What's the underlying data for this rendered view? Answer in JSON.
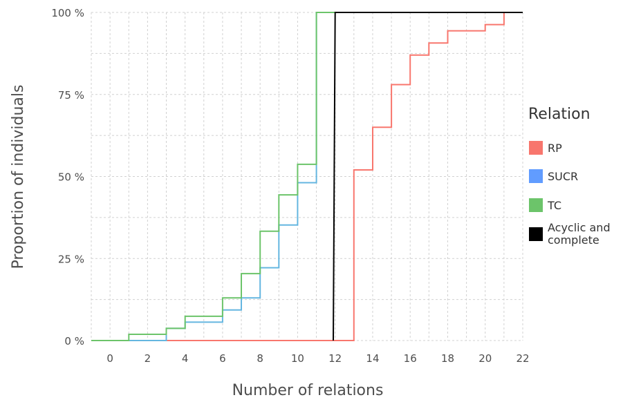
{
  "chart_data": {
    "type": "line",
    "step": true,
    "xlabel": "Number of relations",
    "ylabel": "Proportion of individuals",
    "xlim": [
      -1,
      22
    ],
    "ylim": [
      0,
      1
    ],
    "x_ticks": [
      0,
      2,
      4,
      6,
      8,
      10,
      12,
      14,
      16,
      18,
      20,
      22
    ],
    "y_ticks": [
      0,
      0.25,
      0.5,
      0.75,
      1
    ],
    "y_tick_labels": [
      "0 %",
      "25 %",
      "50 %",
      "75 %",
      "100 %"
    ],
    "grid": true,
    "legend": {
      "title": "Relation",
      "position": "right",
      "entries": [
        {
          "label": "RP",
          "color": "#F8766D"
        },
        {
          "label": "SUCR",
          "color": "#619CFF"
        },
        {
          "label": "TC",
          "color": "#6CC46A"
        },
        {
          "label": "Acyclic and complete",
          "label_lines": [
            "Acyclic and",
            "complete"
          ],
          "color": "#000000"
        }
      ]
    },
    "series": [
      {
        "name": "RP",
        "color": "#F8766D",
        "points": [
          [
            0,
            0
          ],
          [
            13,
            0
          ],
          [
            13,
            0.52
          ],
          [
            14,
            0.52
          ],
          [
            14,
            0.65
          ],
          [
            15,
            0.65
          ],
          [
            15,
            0.78
          ],
          [
            16,
            0.78
          ],
          [
            16,
            0.87
          ],
          [
            17,
            0.87
          ],
          [
            17,
            0.907
          ],
          [
            18,
            0.907
          ],
          [
            18,
            0.944
          ],
          [
            20,
            0.944
          ],
          [
            20,
            0.963
          ],
          [
            21,
            0.963
          ],
          [
            21,
            1
          ],
          [
            22,
            1
          ]
        ]
      },
      {
        "name": "SUCR",
        "color": "#64B6E0",
        "points": [
          [
            0,
            0
          ],
          [
            3,
            0
          ],
          [
            3,
            0.037
          ],
          [
            4,
            0.037
          ],
          [
            4,
            0.056
          ],
          [
            6,
            0.056
          ],
          [
            6,
            0.093
          ],
          [
            7,
            0.093
          ],
          [
            7,
            0.13
          ],
          [
            8,
            0.13
          ],
          [
            8,
            0.222
          ],
          [
            9,
            0.222
          ],
          [
            9,
            0.352
          ],
          [
            10,
            0.352
          ],
          [
            10,
            0.481
          ],
          [
            11,
            0.481
          ],
          [
            11,
            1
          ],
          [
            22,
            1
          ]
        ]
      },
      {
        "name": "TC",
        "color": "#6CC46A",
        "points": [
          [
            -1,
            0
          ],
          [
            1,
            0
          ],
          [
            1,
            0.019
          ],
          [
            3,
            0.019
          ],
          [
            3,
            0.037
          ],
          [
            4,
            0.037
          ],
          [
            4,
            0.074
          ],
          [
            6,
            0.074
          ],
          [
            6,
            0.13
          ],
          [
            7,
            0.13
          ],
          [
            7,
            0.204
          ],
          [
            8,
            0.204
          ],
          [
            8,
            0.333
          ],
          [
            9,
            0.333
          ],
          [
            9,
            0.444
          ],
          [
            10,
            0.444
          ],
          [
            10,
            0.537
          ],
          [
            11,
            0.537
          ],
          [
            11,
            1
          ],
          [
            22,
            1
          ]
        ]
      },
      {
        "name": "Acyclic and complete",
        "color": "#000000",
        "points": [
          [
            11.9,
            0
          ],
          [
            12,
            1
          ],
          [
            22,
            1
          ]
        ]
      }
    ]
  }
}
